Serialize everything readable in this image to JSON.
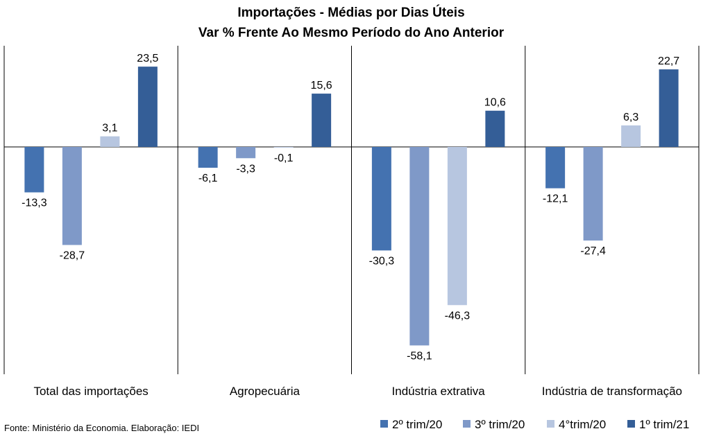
{
  "chart_data": {
    "type": "bar",
    "title": "Importações - Médias por Dias Úteis",
    "subtitle": "Var % Frente Ao Mesmo Período do Ano Anterior",
    "categories": [
      "Total das importações",
      "Agropecuária",
      "Indústria extrativa",
      "Indústria de transformação"
    ],
    "series": [
      {
        "name": "2º trim/20",
        "color": "#4472b0",
        "values": [
          -13.3,
          -6.1,
          -30.3,
          -12.1
        ],
        "labels": [
          "-13,3",
          "-6,1",
          "-30,3",
          "-12,1"
        ]
      },
      {
        "name": "3º trim/20",
        "color": "#7f99c8",
        "values": [
          -28.7,
          -3.3,
          -58.1,
          -27.4
        ],
        "labels": [
          "-28,7",
          "-3,3",
          "-58,1",
          "-27,4"
        ]
      },
      {
        "name": "4°trim/20",
        "color": "#b7c6e0",
        "values": [
          3.1,
          -0.1,
          -46.3,
          6.3
        ],
        "labels": [
          "3,1",
          "-0,1",
          "-46,3",
          "6,3"
        ]
      },
      {
        "name": "1º trim/21",
        "color": "#345e97",
        "values": [
          23.5,
          15.6,
          10.6,
          22.7
        ],
        "labels": [
          "23,5",
          "15,6",
          "10,6",
          "22,7"
        ]
      }
    ],
    "ylim": [
      -65,
      30
    ],
    "grid": false,
    "legend": "bottom-right"
  },
  "source": "Fonte: Ministério da Economia. Elaboração: IEDI"
}
